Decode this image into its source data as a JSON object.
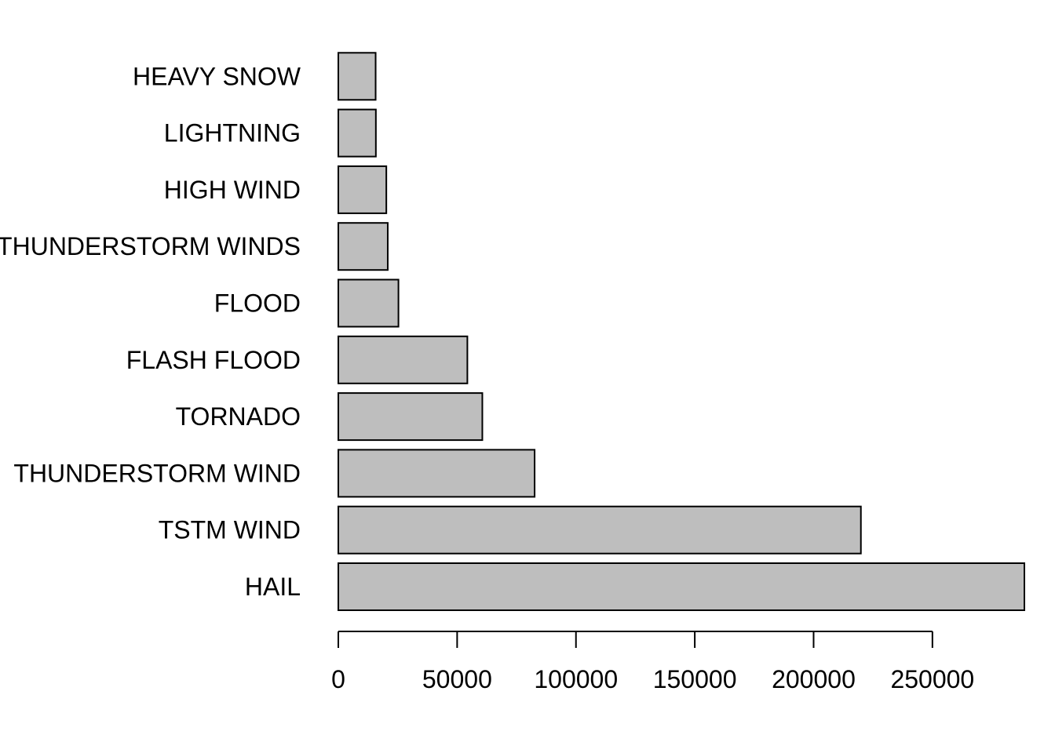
{
  "chart_data": {
    "type": "bar",
    "orientation": "horizontal",
    "categories": [
      "HAIL",
      "TSTM WIND",
      "THUNDERSTORM WIND",
      "TORNADO",
      "FLASH FLOOD",
      "FLOOD",
      "THUNDERSTORM WINDS",
      "HIGH WIND",
      "LIGHTNING",
      "HEAVY SNOW"
    ],
    "values": [
      288700,
      219900,
      82600,
      60600,
      54300,
      25300,
      20800,
      20200,
      15800,
      15700
    ],
    "title": "",
    "xlabel": "",
    "ylabel": "",
    "xlim": [
      0,
      288700
    ],
    "x_ticks": [
      0,
      50000,
      100000,
      150000,
      200000,
      250000
    ],
    "x_tick_labels": [
      "0",
      "50000",
      "100000",
      "150000",
      "200000",
      "250000"
    ],
    "grid": false,
    "colors": {
      "bar_fill": "#bebebe",
      "bar_stroke": "#000000"
    }
  }
}
